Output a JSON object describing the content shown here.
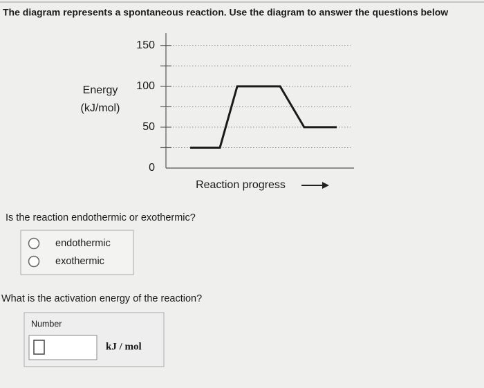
{
  "header": {
    "title": "The diagram represents a spontaneous reaction. Use the diagram to answer the questions below"
  },
  "chart_data": {
    "type": "line",
    "ylabel": [
      "Energy",
      "(kJ/mol)"
    ],
    "xlabel": "Reaction progress",
    "x": [
      12.9,
      28.7,
      37.9,
      60.7,
      73.5,
      90.8
    ],
    "series": [
      {
        "name": null,
        "color": "#1a1a1a",
        "values": [
          25,
          25,
          100,
          100,
          50,
          50
        ]
      }
    ],
    "xlim": [
      0,
      100
    ],
    "ylim": [
      0,
      165
    ],
    "yticks": [
      0,
      50,
      100,
      150
    ],
    "minor_yticks": [
      25,
      75,
      125
    ],
    "grid": true
  },
  "question1": {
    "text": "Is the reaction endothermic or exothermic?",
    "options": [
      "endothermic",
      "exothermic"
    ]
  },
  "question2": {
    "text": "What is the activation energy of the reaction?",
    "field_label": "Number",
    "unit": "kJ / mol"
  }
}
